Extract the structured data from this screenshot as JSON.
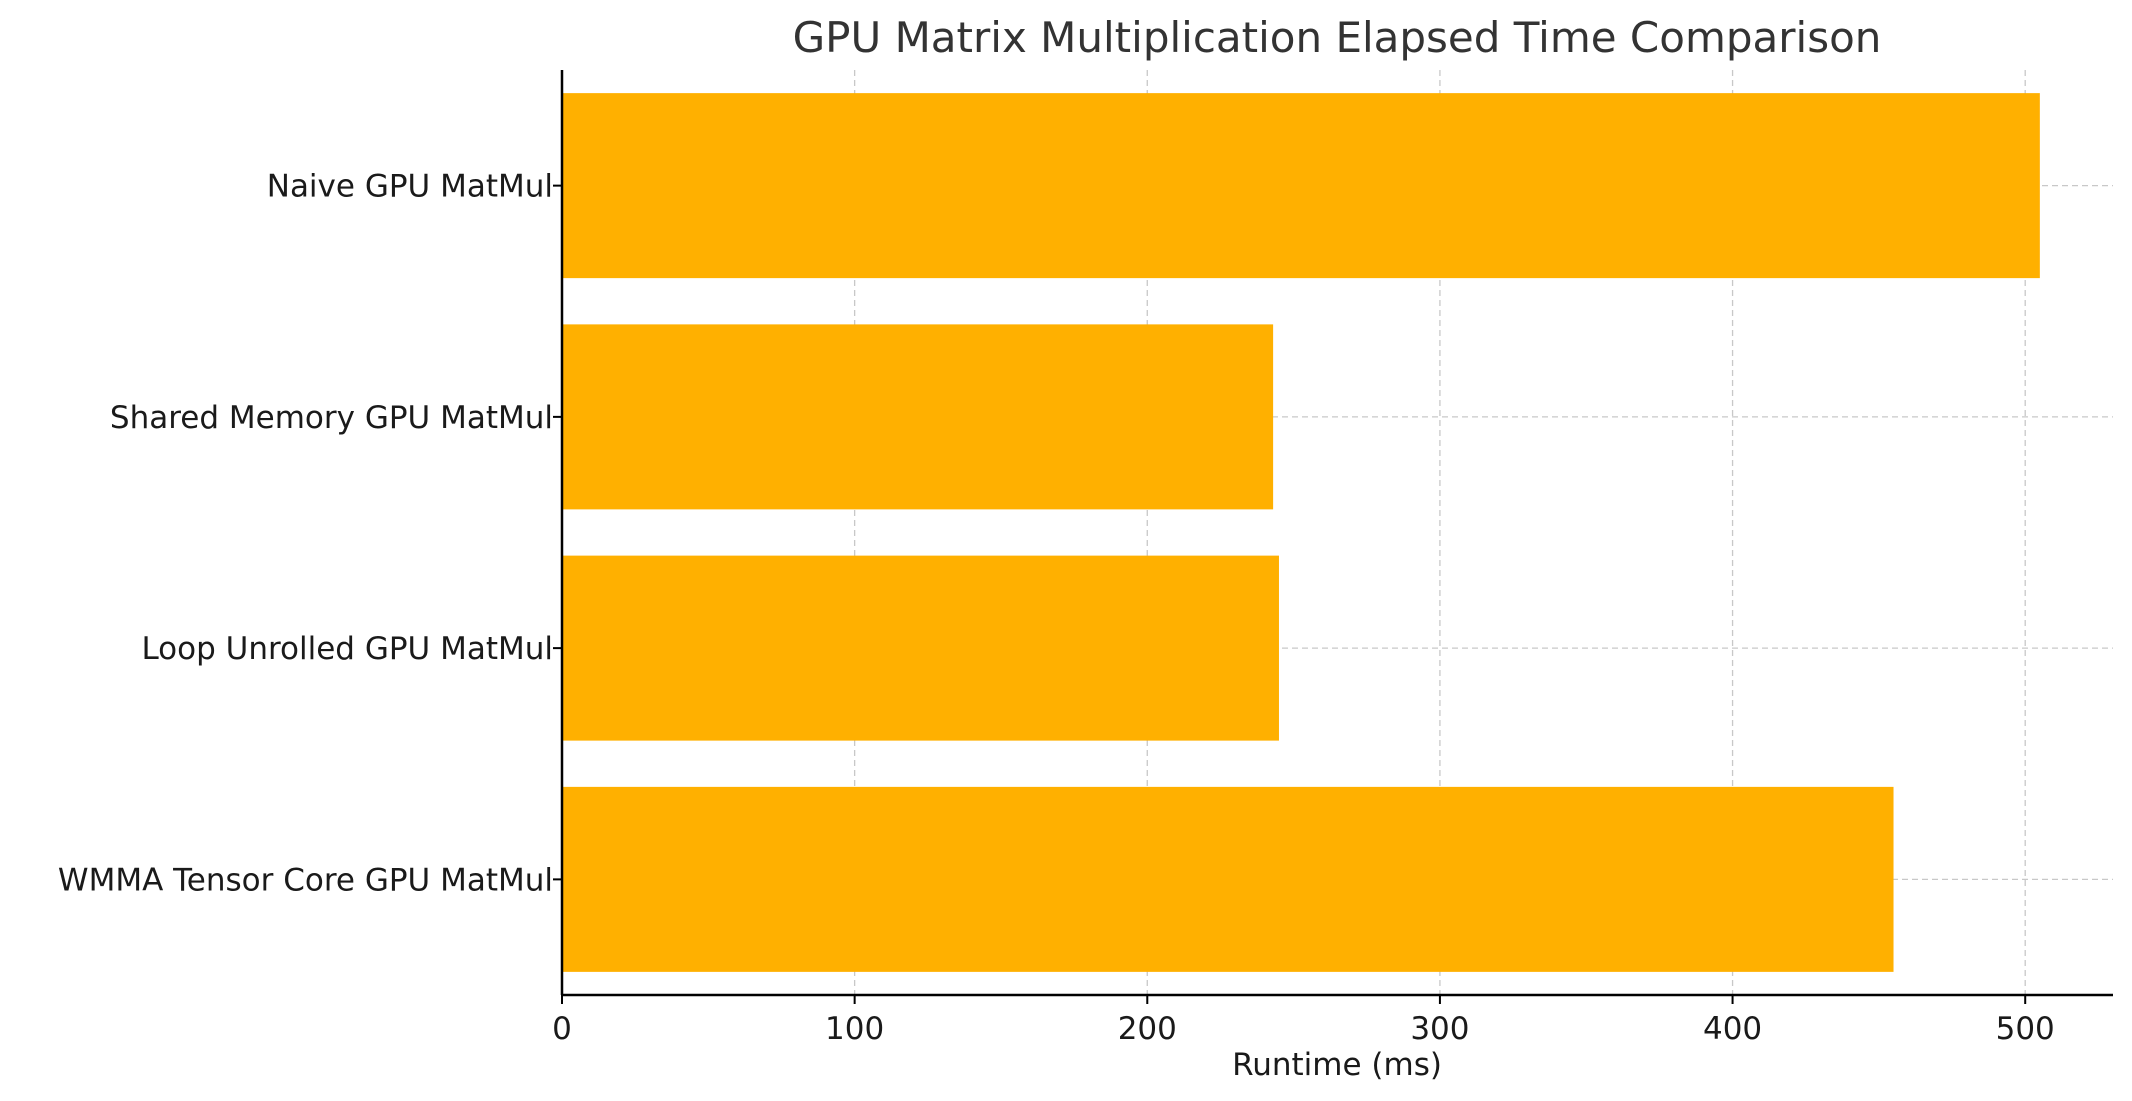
{
  "chart_data": {
    "type": "bar",
    "orientation": "horizontal",
    "title": "GPU Matrix Multiplication Elapsed Time Comparison",
    "xlabel": "Runtime (ms)",
    "ylabel": "",
    "categories": [
      "Naive GPU MatMul",
      "Shared Memory GPU MatMul",
      "Loop Unrolled GPU MatMul",
      "WMMA Tensor Core GPU MatMul"
    ],
    "values": [
      505,
      243,
      245,
      455
    ],
    "xlim": [
      0,
      530
    ],
    "xticks": [
      0,
      100,
      200,
      300,
      400,
      500
    ],
    "grid": true,
    "bar_color": "#FFB000"
  }
}
